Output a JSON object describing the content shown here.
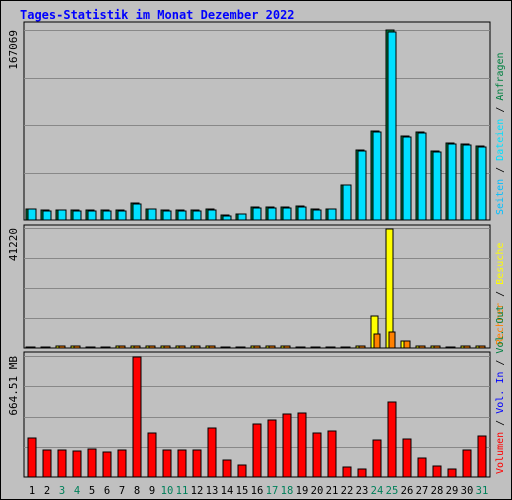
{
  "title": "Tages-Statistik im Monat Dezember 2022",
  "chart_data": [
    {
      "type": "bar",
      "panel": "requests",
      "max_label": "167069",
      "ylim": [
        0,
        167069
      ],
      "grid": true,
      "categories": [
        "1",
        "2",
        "3",
        "4",
        "5",
        "6",
        "7",
        "8",
        "9",
        "10",
        "11",
        "12",
        "13",
        "14",
        "15",
        "16",
        "17",
        "18",
        "19",
        "20",
        "21",
        "22",
        "23",
        "24",
        "25",
        "26",
        "27",
        "28",
        "29",
        "30",
        "31"
      ],
      "legend": [
        "Anfragen",
        "Dateien",
        "Seiten"
      ],
      "series": [
        {
          "name": "Anfragen",
          "color": "#008040",
          "values": [
            10100,
            8600,
            8800,
            8600,
            8800,
            8600,
            8600,
            14800,
            10100,
            8600,
            8600,
            8600,
            9400,
            4000,
            5500,
            11000,
            11000,
            11000,
            12000,
            9400,
            10100,
            31100,
            61500,
            78500,
            167000,
            74100,
            77000,
            60800,
            67300,
            66600,
            65100
          ]
        },
        {
          "name": "Dateien",
          "color": "#00e0ff",
          "values": [
            9700,
            8300,
            8500,
            8300,
            8300,
            8100,
            8300,
            14400,
            9700,
            8300,
            8300,
            8300,
            9200,
            3700,
            5200,
            10500,
            10800,
            10800,
            11500,
            8900,
            9700,
            30600,
            60800,
            77800,
            165600,
            73300,
            76300,
            60100,
            66600,
            66000,
            64400
          ]
        }
      ]
    },
    {
      "type": "bar",
      "panel": "visits",
      "max_label": "41220",
      "ylim": [
        0,
        41220
      ],
      "grid": true,
      "categories": [
        "1",
        "2",
        "3",
        "4",
        "5",
        "6",
        "7",
        "8",
        "9",
        "10",
        "11",
        "12",
        "13",
        "14",
        "15",
        "16",
        "17",
        "18",
        "19",
        "20",
        "21",
        "22",
        "23",
        "24",
        "25",
        "26",
        "27",
        "28",
        "29",
        "30",
        "31"
      ],
      "legend": [
        "Besuche",
        "Rechner"
      ],
      "series": [
        {
          "name": "Besuche",
          "color": "#ffff00",
          "values": [
            330,
            330,
            660,
            660,
            330,
            330,
            660,
            660,
            660,
            660,
            660,
            660,
            660,
            330,
            330,
            660,
            660,
            660,
            330,
            330,
            330,
            330,
            660,
            10890,
            40920,
            2310,
            660,
            660,
            330,
            660,
            660
          ]
        },
        {
          "name": "Rechner",
          "color": "#ff8000",
          "values": [
            300,
            300,
            600,
            600,
            300,
            300,
            600,
            600,
            600,
            600,
            600,
            600,
            600,
            300,
            300,
            600,
            600,
            600,
            300,
            300,
            300,
            300,
            600,
            4950,
            5610,
            2310,
            600,
            600,
            300,
            600,
            600
          ]
        }
      ]
    },
    {
      "type": "bar",
      "panel": "volume",
      "max_label": "664.51 MB",
      "ylim": [
        0,
        664.51
      ],
      "grid": true,
      "categories": [
        "1",
        "2",
        "3",
        "4",
        "5",
        "6",
        "7",
        "8",
        "9",
        "10",
        "11",
        "12",
        "13",
        "14",
        "15",
        "16",
        "17",
        "18",
        "19",
        "20",
        "21",
        "22",
        "23",
        "24",
        "25",
        "26",
        "27",
        "28",
        "29",
        "30",
        "31"
      ],
      "weekend_days": [
        "3",
        "4",
        "10",
        "11",
        "17",
        "18",
        "24",
        "25",
        "31"
      ],
      "legend": [
        "Volumen",
        "Vol. In",
        "Vol. Out"
      ],
      "series": [
        {
          "name": "Volumen",
          "color": "#ff0000",
          "values": [
            216,
            148,
            148,
            142,
            153,
            137,
            148,
            659,
            244,
            148,
            148,
            148,
            269,
            95,
            68,
            290,
            312,
            345,
            350,
            239,
            250,
            53,
            42,
            205,
            411,
            210,
            105,
            63,
            46,
            148,
            227
          ]
        }
      ]
    }
  ],
  "colors": {
    "background": "#c0c0c0",
    "plot_background": "#c0c0c0",
    "title": "#0000ff",
    "anfragen": "#008040",
    "dateien": "#00e0ff",
    "seiten": "#00c0ff",
    "besuche": "#ffff00",
    "rechner": "#ff8000",
    "vol_out": "#008040",
    "vol_in": "#0000ff",
    "volumen": "#ff0000"
  }
}
